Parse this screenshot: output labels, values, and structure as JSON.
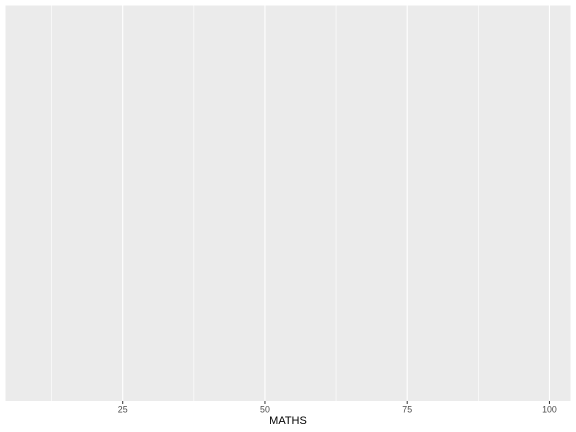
{
  "chart_data": {
    "type": "scatter",
    "xlabel": "MATHS",
    "ylabel": "",
    "x_ticks": [
      25,
      50,
      75,
      100
    ],
    "x_tick_labels": [
      "25",
      "50",
      "75",
      "100"
    ],
    "xlim": [
      4.4,
      103.7
    ],
    "series": [],
    "grid": true,
    "panel_color": "#ebebeb",
    "grid_color": "#ffffff",
    "y_axis_shown": false
  }
}
